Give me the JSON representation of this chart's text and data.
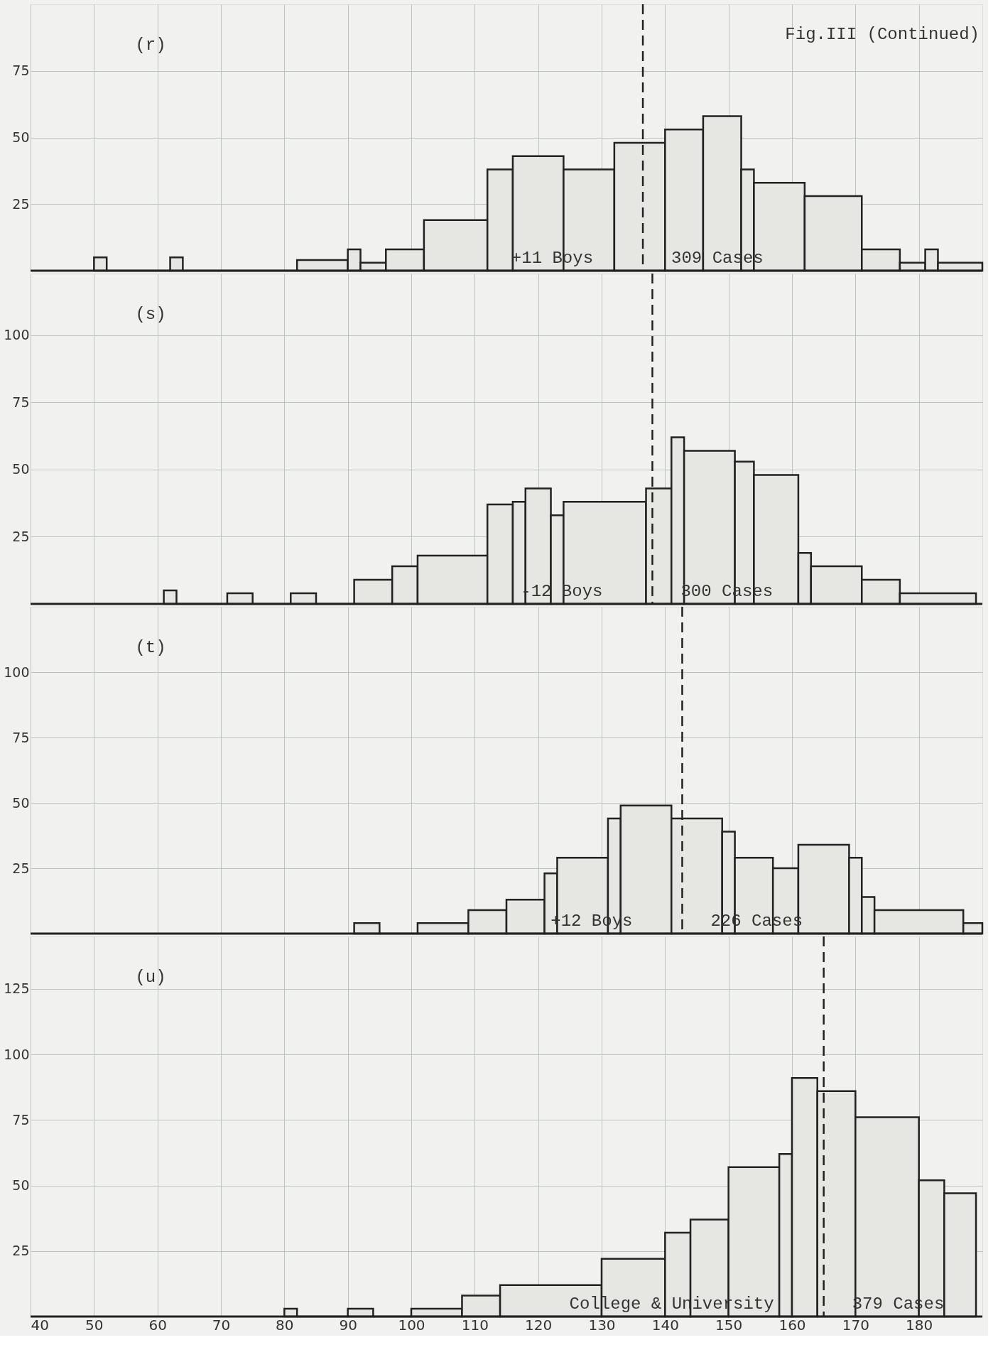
{
  "chart_data": [
    {
      "type": "histogram",
      "title": "Fig.III (Continued)",
      "annotations": [
        "(r)",
        "+11 Boys",
        "309 Cases"
      ],
      "bins": [
        50,
        52,
        62,
        64,
        82,
        90,
        92,
        96,
        102,
        112,
        116,
        124,
        132,
        140,
        146,
        152,
        154,
        162,
        171,
        177,
        181,
        183,
        190
      ],
      "values": [
        5,
        0,
        5,
        0,
        4,
        8,
        3,
        8,
        19,
        38,
        43,
        38,
        48,
        53,
        58,
        38,
        33,
        28,
        8,
        3,
        8,
        3
      ],
      "color": "#222222",
      "xlim": [
        40,
        190
      ],
      "ylim": [
        0,
        100
      ],
      "yticks": [
        25,
        50,
        75
      ],
      "xticks": [
        40,
        50,
        60,
        70,
        80,
        90,
        100,
        110,
        120,
        130,
        140,
        150,
        160,
        170,
        180
      ],
      "ref_lines": [
        {
          "axis": "x",
          "value": 136.5,
          "line_style": "dashed"
        }
      ],
      "grid": true,
      "tick_labels": "y"
    },
    {
      "type": "histogram",
      "annotations": [
        "(s)",
        "-12 Boys",
        "300 Cases"
      ],
      "bins": [
        61,
        63,
        71,
        75,
        81,
        85,
        91,
        97,
        101,
        112,
        116,
        118,
        122,
        124,
        137,
        141,
        143,
        151,
        154,
        161,
        163,
        171,
        177,
        189
      ],
      "values": [
        5,
        0,
        4,
        0,
        4,
        0,
        9,
        14,
        18,
        37,
        38,
        43,
        33,
        38,
        43,
        62,
        57,
        53,
        48,
        19,
        14,
        9,
        4
      ],
      "color": "#222222",
      "xlim": [
        40,
        190
      ],
      "ylim": [
        0,
        123
      ],
      "yticks": [
        25,
        50,
        75,
        100
      ],
      "xticks": [
        40,
        50,
        60,
        70,
        80,
        90,
        100,
        110,
        120,
        130,
        140,
        150,
        160,
        170,
        180
      ],
      "ref_lines": [
        {
          "axis": "x",
          "value": 138,
          "line_style": "dashed"
        }
      ],
      "grid": true,
      "tick_labels": "y"
    },
    {
      "type": "histogram",
      "annotations": [
        "(t)",
        "+12 Boys",
        "226 Cases"
      ],
      "bins": [
        91,
        95,
        101,
        109,
        115,
        121,
        123,
        131,
        133,
        141,
        149,
        151,
        157,
        161,
        169,
        171,
        173,
        187,
        190
      ],
      "values": [
        4,
        0,
        4,
        9,
        13,
        23,
        29,
        44,
        49,
        44,
        39,
        29,
        25,
        34,
        29,
        14,
        9,
        4
      ],
      "color": "#222222",
      "xlim": [
        40,
        190
      ],
      "ylim": [
        0,
        125
      ],
      "yticks": [
        25,
        50,
        75,
        100
      ],
      "xticks": [
        40,
        50,
        60,
        70,
        80,
        90,
        100,
        110,
        120,
        130,
        140,
        150,
        160,
        170,
        180
      ],
      "ref_lines": [
        {
          "axis": "x",
          "value": 142.7,
          "line_style": "dashed"
        }
      ],
      "grid": true,
      "tick_labels": "y"
    },
    {
      "type": "histogram",
      "annotations": [
        "(u)",
        "College & University",
        "379 Cases"
      ],
      "bins": [
        80,
        82,
        90,
        94,
        100,
        108,
        114,
        130,
        140,
        144,
        150,
        158,
        160,
        164,
        170,
        180,
        184,
        189
      ],
      "values": [
        3,
        0,
        3,
        0,
        3,
        8,
        12,
        22,
        32,
        37,
        57,
        62,
        91,
        86,
        76,
        52,
        47
      ],
      "color": "#222222",
      "xlim": [
        40,
        190
      ],
      "ylim": [
        0,
        145
      ],
      "yticks": [
        25,
        50,
        75,
        100,
        125
      ],
      "xticks": [
        40,
        50,
        60,
        70,
        80,
        90,
        100,
        110,
        120,
        130,
        140,
        150,
        160,
        170,
        180
      ],
      "ref_lines": [
        {
          "axis": "x",
          "value": 165,
          "line_style": "dashed"
        }
      ],
      "grid": true
    }
  ]
}
